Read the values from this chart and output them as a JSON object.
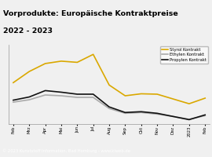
{
  "title_line1": "Vorprodukte: Europäische Kontraktpreise",
  "title_line2": "2022 - 2023",
  "title_bg_color": "#F2C200",
  "title_text_color": "#000000",
  "footer_text": "© 2023 Kunststoff Information, Bad Homburg - www.kiweb.de",
  "footer_bg_color": "#888888",
  "footer_text_color": "#ffffff",
  "plot_bg_color": "#f0f0f0",
  "fig_bg_color": "#f0f0f0",
  "x_labels": [
    "Feb",
    "Mrz",
    "Apr",
    "Mai",
    "Jun",
    "Jul",
    "Aug",
    "Sep",
    "Okt",
    "Nov",
    "Dez",
    "2023",
    "Feb"
  ],
  "styrol": [
    820,
    960,
    1060,
    1090,
    1075,
    1175,
    790,
    655,
    680,
    675,
    615,
    555,
    625
  ],
  "ethylen": [
    575,
    605,
    665,
    655,
    635,
    635,
    495,
    435,
    445,
    425,
    395,
    360,
    405
  ],
  "propylen": [
    600,
    640,
    720,
    700,
    675,
    675,
    515,
    445,
    455,
    435,
    395,
    355,
    415
  ],
  "styrol_color": "#DAA800",
  "ethylen_color": "#aaaaaa",
  "propylen_color": "#111111",
  "legend_labels": [
    "Styrol Kontrakt",
    "Ethylen Kontrakt",
    "Propylen Kontrakt"
  ],
  "ylim": [
    300,
    1300
  ],
  "grid_color": "#ffffff",
  "line_width": 1.2
}
